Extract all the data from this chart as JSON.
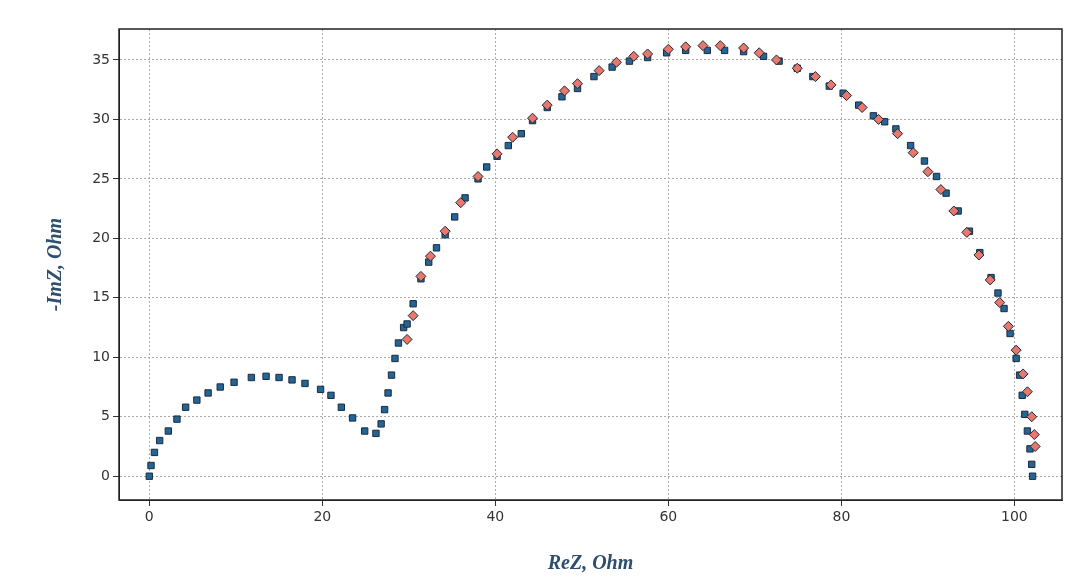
{
  "chart_data": {
    "type": "scatter",
    "xlabel": "ReZ, Ohm",
    "ylabel": "-ImZ, Ohm",
    "xlim": [
      -3.5,
      105.5
    ],
    "ylim": [
      -2,
      37.6
    ],
    "xticks": [
      0,
      20,
      40,
      60,
      80,
      100
    ],
    "yticks": [
      0,
      5,
      10,
      15,
      20,
      25,
      30,
      35
    ],
    "grid": true,
    "legend": false,
    "series": [
      {
        "color": "#e8776c",
        "marker": "diamond",
        "x": [
          29.8,
          30.5,
          31.4,
          32.5,
          34.2,
          36,
          38,
          40.2,
          42,
          44.3,
          46,
          48,
          49.5,
          52,
          54,
          56,
          57.6,
          60,
          62,
          64,
          66,
          68.7,
          70.5,
          72.5,
          74.9,
          77,
          78.8,
          80.6,
          82.4,
          84.3,
          86.5,
          88.3,
          90,
          91.5,
          93,
          94.5,
          95.9,
          97.2,
          98.3,
          99.3,
          100.2,
          101,
          101.5,
          102,
          102.3,
          102.4
        ],
        "values": [
          11.5,
          13.5,
          16.8,
          18.5,
          20.6,
          23,
          25.2,
          27.1,
          28.5,
          30.1,
          31.2,
          32.4,
          33,
          34.1,
          34.8,
          35.3,
          35.5,
          35.9,
          36.1,
          36.2,
          36.2,
          36,
          35.6,
          35,
          34.3,
          33.6,
          32.9,
          32,
          31,
          30,
          28.8,
          27.2,
          25.6,
          24.1,
          22.3,
          20.5,
          18.6,
          16.5,
          14.6,
          12.6,
          10.6,
          8.6,
          7.1,
          5,
          3.5,
          2.5
        ]
      },
      {
        "color": "#236596",
        "marker": "square",
        "x": [
          0,
          0.2,
          0.6,
          1.2,
          2.2,
          3.2,
          4.2,
          5.5,
          6.8,
          8.2,
          9.8,
          11.8,
          13.5,
          15,
          16.5,
          18,
          19.8,
          21,
          22.2,
          23.5,
          24.9,
          26.2,
          26.8,
          27.2,
          27.6,
          28,
          28.4,
          28.8,
          29.4,
          29.8,
          30.5,
          31.4,
          32.3,
          33.2,
          34.2,
          35.3,
          36.5,
          38,
          39,
          40.2,
          41.5,
          43,
          44.3,
          46,
          47.7,
          49.5,
          51.4,
          53.5,
          55.5,
          57.6,
          59.8,
          62,
          64.5,
          66.5,
          68.7,
          71,
          72.8,
          74.9,
          76.7,
          78.6,
          80.2,
          82,
          83.7,
          85,
          86.3,
          88,
          89.6,
          91,
          92.1,
          93.5,
          94.8,
          96,
          97.3,
          98.1,
          98.8,
          99.5,
          100.2,
          100.6,
          100.9,
          101.2,
          101.5,
          101.8,
          102,
          102.1
        ],
        "values": [
          0,
          0.9,
          2,
          3,
          3.8,
          4.8,
          5.8,
          6.4,
          7,
          7.5,
          7.9,
          8.3,
          8.4,
          8.3,
          8.1,
          7.8,
          7.3,
          6.8,
          5.8,
          4.9,
          3.8,
          3.6,
          4.4,
          5.6,
          7,
          8.5,
          9.9,
          11.2,
          12.5,
          12.8,
          14.5,
          16.6,
          18,
          19.2,
          20.3,
          21.8,
          23.4,
          25,
          26,
          26.9,
          27.8,
          28.8,
          29.9,
          31,
          31.9,
          32.6,
          33.6,
          34.4,
          34.9,
          35.2,
          35.6,
          35.8,
          35.8,
          35.8,
          35.7,
          35.3,
          34.9,
          34.3,
          33.6,
          32.8,
          32.2,
          31.2,
          30.3,
          29.8,
          29.2,
          27.8,
          26.5,
          25.2,
          23.8,
          22.3,
          20.6,
          18.8,
          16.7,
          15.4,
          14.1,
          12,
          9.9,
          8.5,
          6.8,
          5.2,
          3.8,
          2.3,
          1,
          0
        ]
      }
    ]
  }
}
